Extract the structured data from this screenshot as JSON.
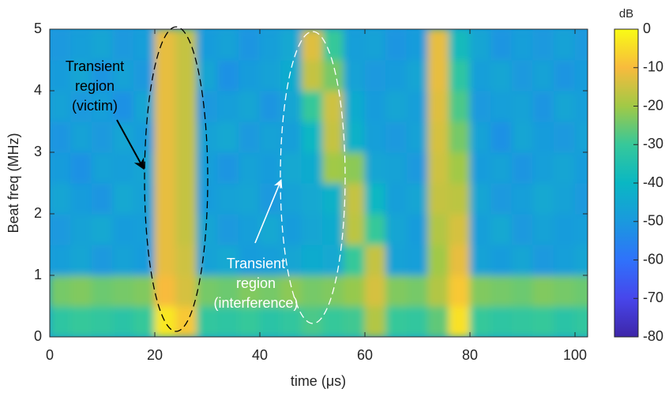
{
  "chart_data": {
    "type": "heatmap",
    "xlabel": "time (μs)",
    "ylabel": "Beat freq (MHz)",
    "x": [
      2,
      6,
      10,
      14,
      18,
      22,
      26,
      30,
      34,
      38,
      42,
      46,
      50,
      54,
      58,
      62,
      66,
      70,
      74,
      78,
      82,
      86,
      90,
      94,
      98,
      102
    ],
    "y": [
      0.25,
      0.75,
      1.25,
      1.75,
      2.25,
      2.75,
      3.25,
      3.75,
      4.25,
      4.75
    ],
    "z": [
      [
        -32,
        -30,
        -31,
        -33,
        -30,
        -3,
        -8,
        -31,
        -32,
        -30,
        -33,
        -31,
        -28,
        -30,
        -29,
        -18,
        -30,
        -31,
        -26,
        -4,
        -30,
        -32,
        -31,
        -30,
        -33,
        -31
      ],
      [
        -24,
        -23,
        -25,
        -24,
        -23,
        -10,
        -14,
        -24,
        -25,
        -23,
        -24,
        -22,
        -24,
        -23,
        -21,
        -14,
        -23,
        -24,
        -18,
        -8,
        -23,
        -24,
        -25,
        -23,
        -24,
        -25
      ],
      [
        -48,
        -46,
        -50,
        -47,
        -49,
        -12,
        -15,
        -47,
        -45,
        -49,
        -48,
        -46,
        -44,
        -45,
        -30,
        -16,
        -47,
        -48,
        -20,
        -12,
        -47,
        -49,
        -46,
        -50,
        -48,
        -46
      ],
      [
        -50,
        -47,
        -45,
        -49,
        -48,
        -12,
        -16,
        -46,
        -50,
        -48,
        -45,
        -49,
        -46,
        -44,
        -17,
        -30,
        -46,
        -49,
        -18,
        -14,
        -48,
        -45,
        -50,
        -47,
        -49,
        -48
      ],
      [
        -46,
        -49,
        -51,
        -45,
        -47,
        -12,
        -16,
        -49,
        -47,
        -46,
        -50,
        -47,
        -45,
        -42,
        -16,
        -40,
        -48,
        -46,
        -16,
        -17,
        -46,
        -50,
        -48,
        -45,
        -47,
        -50
      ],
      [
        -49,
        -52,
        -47,
        -48,
        -46,
        -12,
        -16,
        -48,
        -51,
        -47,
        -49,
        -45,
        -44,
        -20,
        -22,
        -46,
        -47,
        -50,
        -15,
        -20,
        -49,
        -47,
        -51,
        -48,
        -46,
        -49
      ],
      [
        -51,
        -47,
        -50,
        -46,
        -49,
        -12,
        -16,
        -47,
        -45,
        -50,
        -47,
        -48,
        -40,
        -16,
        -42,
        -48,
        -50,
        -47,
        -14,
        -24,
        -47,
        -52,
        -46,
        -49,
        -50,
        -47
      ],
      [
        -47,
        -50,
        -48,
        -52,
        -46,
        -12,
        -16,
        -50,
        -48,
        -46,
        -51,
        -46,
        -30,
        -15,
        -44,
        -49,
        -46,
        -48,
        -13,
        -28,
        -50,
        -48,
        -47,
        -51,
        -46,
        -48
      ],
      [
        -49,
        -46,
        -51,
        -47,
        -50,
        -12,
        -16,
        -46,
        -52,
        -49,
        -47,
        -44,
        -16,
        -24,
        -47,
        -50,
        -49,
        -46,
        -12,
        -32,
        -48,
        -46,
        -50,
        -47,
        -51,
        -49
      ],
      [
        -50,
        -48,
        -46,
        -50,
        -48,
        -12,
        -16,
        -49,
        -47,
        -51,
        -48,
        -45,
        -13,
        -30,
        -48,
        -47,
        -51,
        -49,
        -12,
        -38,
        -46,
        -51,
        -48,
        -50,
        -47,
        -50
      ]
    ],
    "xlim": [
      0,
      102.4
    ],
    "xticks": [
      0,
      20,
      40,
      60,
      80,
      100
    ],
    "ylim": [
      0,
      5
    ],
    "yticks": [
      0,
      1,
      2,
      3,
      4,
      5
    ],
    "colorbar": {
      "label": "dB",
      "clim": [
        -80,
        0
      ],
      "ticks": [
        0,
        -10,
        -20,
        -30,
        -40,
        -50,
        -60,
        -70,
        -80
      ]
    },
    "annotations": [
      {
        "lines": [
          "Transient",
          "region",
          "(victim)"
        ],
        "color": "#000000"
      },
      {
        "lines": [
          "Transient",
          "region",
          "(interference)"
        ],
        "color": "#ffffff"
      }
    ]
  }
}
